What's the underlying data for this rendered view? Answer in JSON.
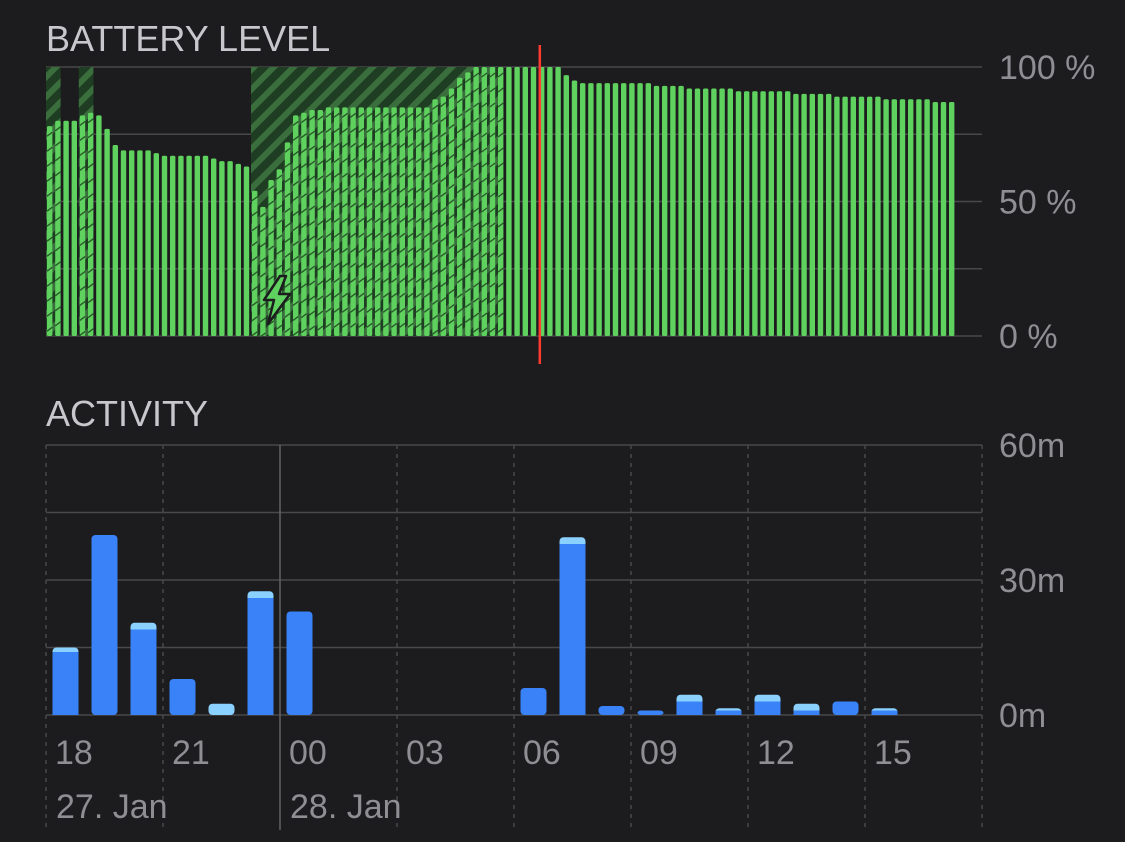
{
  "chart_data": [
    {
      "type": "bar",
      "title": "BATTERY LEVEL",
      "ylim": [
        0,
        100
      ],
      "y_ticks": [
        {
          "value": 100,
          "label": "100 %"
        },
        {
          "value": 50,
          "label": "50 %"
        },
        {
          "value": 0,
          "label": "0 %"
        }
      ],
      "x_range_hours": [
        17,
        25
      ],
      "x_range_note": "hours since 27 Jan 00:00",
      "values": [
        78,
        80,
        80,
        80,
        82,
        83,
        82,
        77,
        71,
        69,
        69,
        69,
        69,
        68,
        67,
        67,
        67,
        67,
        67,
        67,
        66,
        65,
        65,
        64,
        63,
        54,
        48,
        58,
        62,
        72,
        82,
        83,
        84,
        84,
        85,
        85,
        85,
        85,
        85,
        85,
        85,
        85,
        85,
        85,
        85,
        85,
        85,
        88,
        89,
        92,
        96,
        98,
        100,
        100,
        100,
        100,
        100,
        100,
        100,
        100,
        100,
        100,
        100,
        97,
        95,
        94,
        94,
        94,
        94,
        94,
        94,
        94,
        94,
        94,
        93,
        93,
        93,
        93,
        92,
        92,
        92,
        92,
        92,
        92,
        91,
        91,
        91,
        91,
        91,
        91,
        91,
        90,
        90,
        90,
        90,
        90,
        89,
        89,
        89,
        89,
        89,
        89,
        88,
        88,
        88,
        88,
        88,
        88,
        87,
        87,
        87
      ],
      "charging_intervals": [
        [
          0,
          1
        ],
        [
          4,
          5
        ],
        [
          25,
          55
        ]
      ],
      "charging_icon": "lightning-bolt-icon",
      "current_time_index": 59,
      "colors": {
        "bar": "#5fd15e",
        "charging": "#2f6b33",
        "now": "#ff3b30",
        "grid": "#48484a"
      }
    },
    {
      "type": "bar",
      "title": "ACTIVITY",
      "ylim": [
        0,
        60
      ],
      "y_ticks": [
        {
          "value": 60,
          "label": "60m"
        },
        {
          "value": 30,
          "label": "30m"
        },
        {
          "value": 0,
          "label": "0m"
        }
      ],
      "categories": [
        "18",
        "19",
        "20",
        "21",
        "22",
        "23",
        "00",
        "01",
        "02",
        "03",
        "04",
        "05",
        "06",
        "07",
        "08",
        "09",
        "10",
        "11",
        "12",
        "13",
        "14",
        "15",
        "16"
      ],
      "series": [
        {
          "key": "dark",
          "values": [
            14,
            40,
            19,
            8,
            0,
            26,
            23,
            0,
            0,
            0,
            0,
            0,
            6,
            38,
            2,
            1,
            3,
            1,
            3,
            1,
            3,
            1,
            0
          ]
        },
        {
          "key": "light",
          "values": [
            1,
            0,
            1.5,
            0,
            2.5,
            1.5,
            0,
            0,
            0,
            0,
            0,
            0,
            0,
            1.5,
            0,
            0,
            1.5,
            0.5,
            1.5,
            1.5,
            0,
            0.5,
            0
          ]
        }
      ],
      "x_ticks": [
        "18",
        "21",
        "00",
        "03",
        "06",
        "09",
        "12",
        "15"
      ],
      "day_labels": [
        "27. Jan",
        "28. Jan"
      ],
      "colors": {
        "dark": "#3a82f7",
        "light": "#8ad1ff",
        "grid": "#48484a"
      }
    }
  ]
}
